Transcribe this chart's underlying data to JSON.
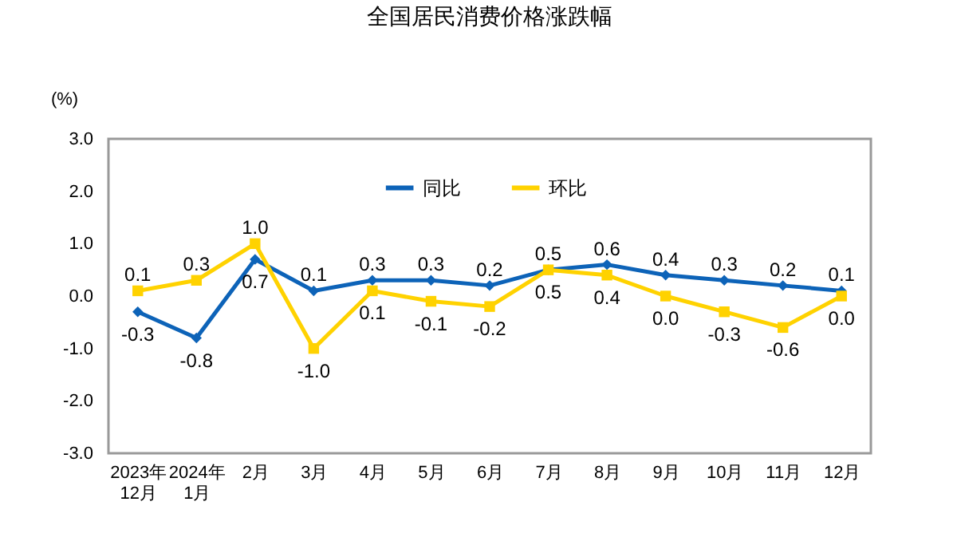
{
  "chart_data": {
    "type": "line",
    "title": "全国居民消费价格涨跌幅",
    "ylabel": "(%)",
    "categories": [
      "2023年12月",
      "2024年1月",
      "2月",
      "3月",
      "4月",
      "5月",
      "6月",
      "7月",
      "8月",
      "9月",
      "10月",
      "11月",
      "12月"
    ],
    "series": [
      {
        "name": "同比",
        "color": "#0d63b8",
        "marker": "diamond",
        "values": [
          -0.3,
          -0.8,
          0.7,
          0.1,
          0.3,
          0.3,
          0.2,
          0.5,
          0.6,
          0.4,
          0.3,
          0.2,
          0.1
        ],
        "value_labels": [
          "-0.3",
          "-0.8",
          "0.7",
          "0.1",
          "0.3",
          "0.3",
          "0.2",
          "0.5",
          "0.6",
          "0.4",
          "0.3",
          "0.2",
          "0.1"
        ]
      },
      {
        "name": "环比",
        "color": "#ffd200",
        "marker": "square",
        "values": [
          0.1,
          0.3,
          1.0,
          -1.0,
          0.1,
          -0.1,
          -0.2,
          0.5,
          0.4,
          0.0,
          -0.3,
          -0.6,
          0.0
        ],
        "value_labels": [
          "0.1",
          "0.3",
          "1.0",
          "-1.0",
          "0.1",
          "-0.1",
          "-0.2",
          "0.5",
          "0.4",
          "0.0",
          "-0.3",
          "-0.6",
          "0.0"
        ]
      }
    ],
    "ylim": [
      -3,
      3
    ],
    "yticks": [
      {
        "value": -3,
        "label": "-3.0"
      },
      {
        "value": -2,
        "label": "-2.0"
      },
      {
        "value": -1,
        "label": "-1.0"
      },
      {
        "value": 0,
        "label": "0.0"
      },
      {
        "value": 1,
        "label": "1.0"
      },
      {
        "value": 2,
        "label": "2.0"
      },
      {
        "value": 3,
        "label": "3.0"
      }
    ],
    "legend": "top",
    "grid": false,
    "line_style": "solid"
  }
}
